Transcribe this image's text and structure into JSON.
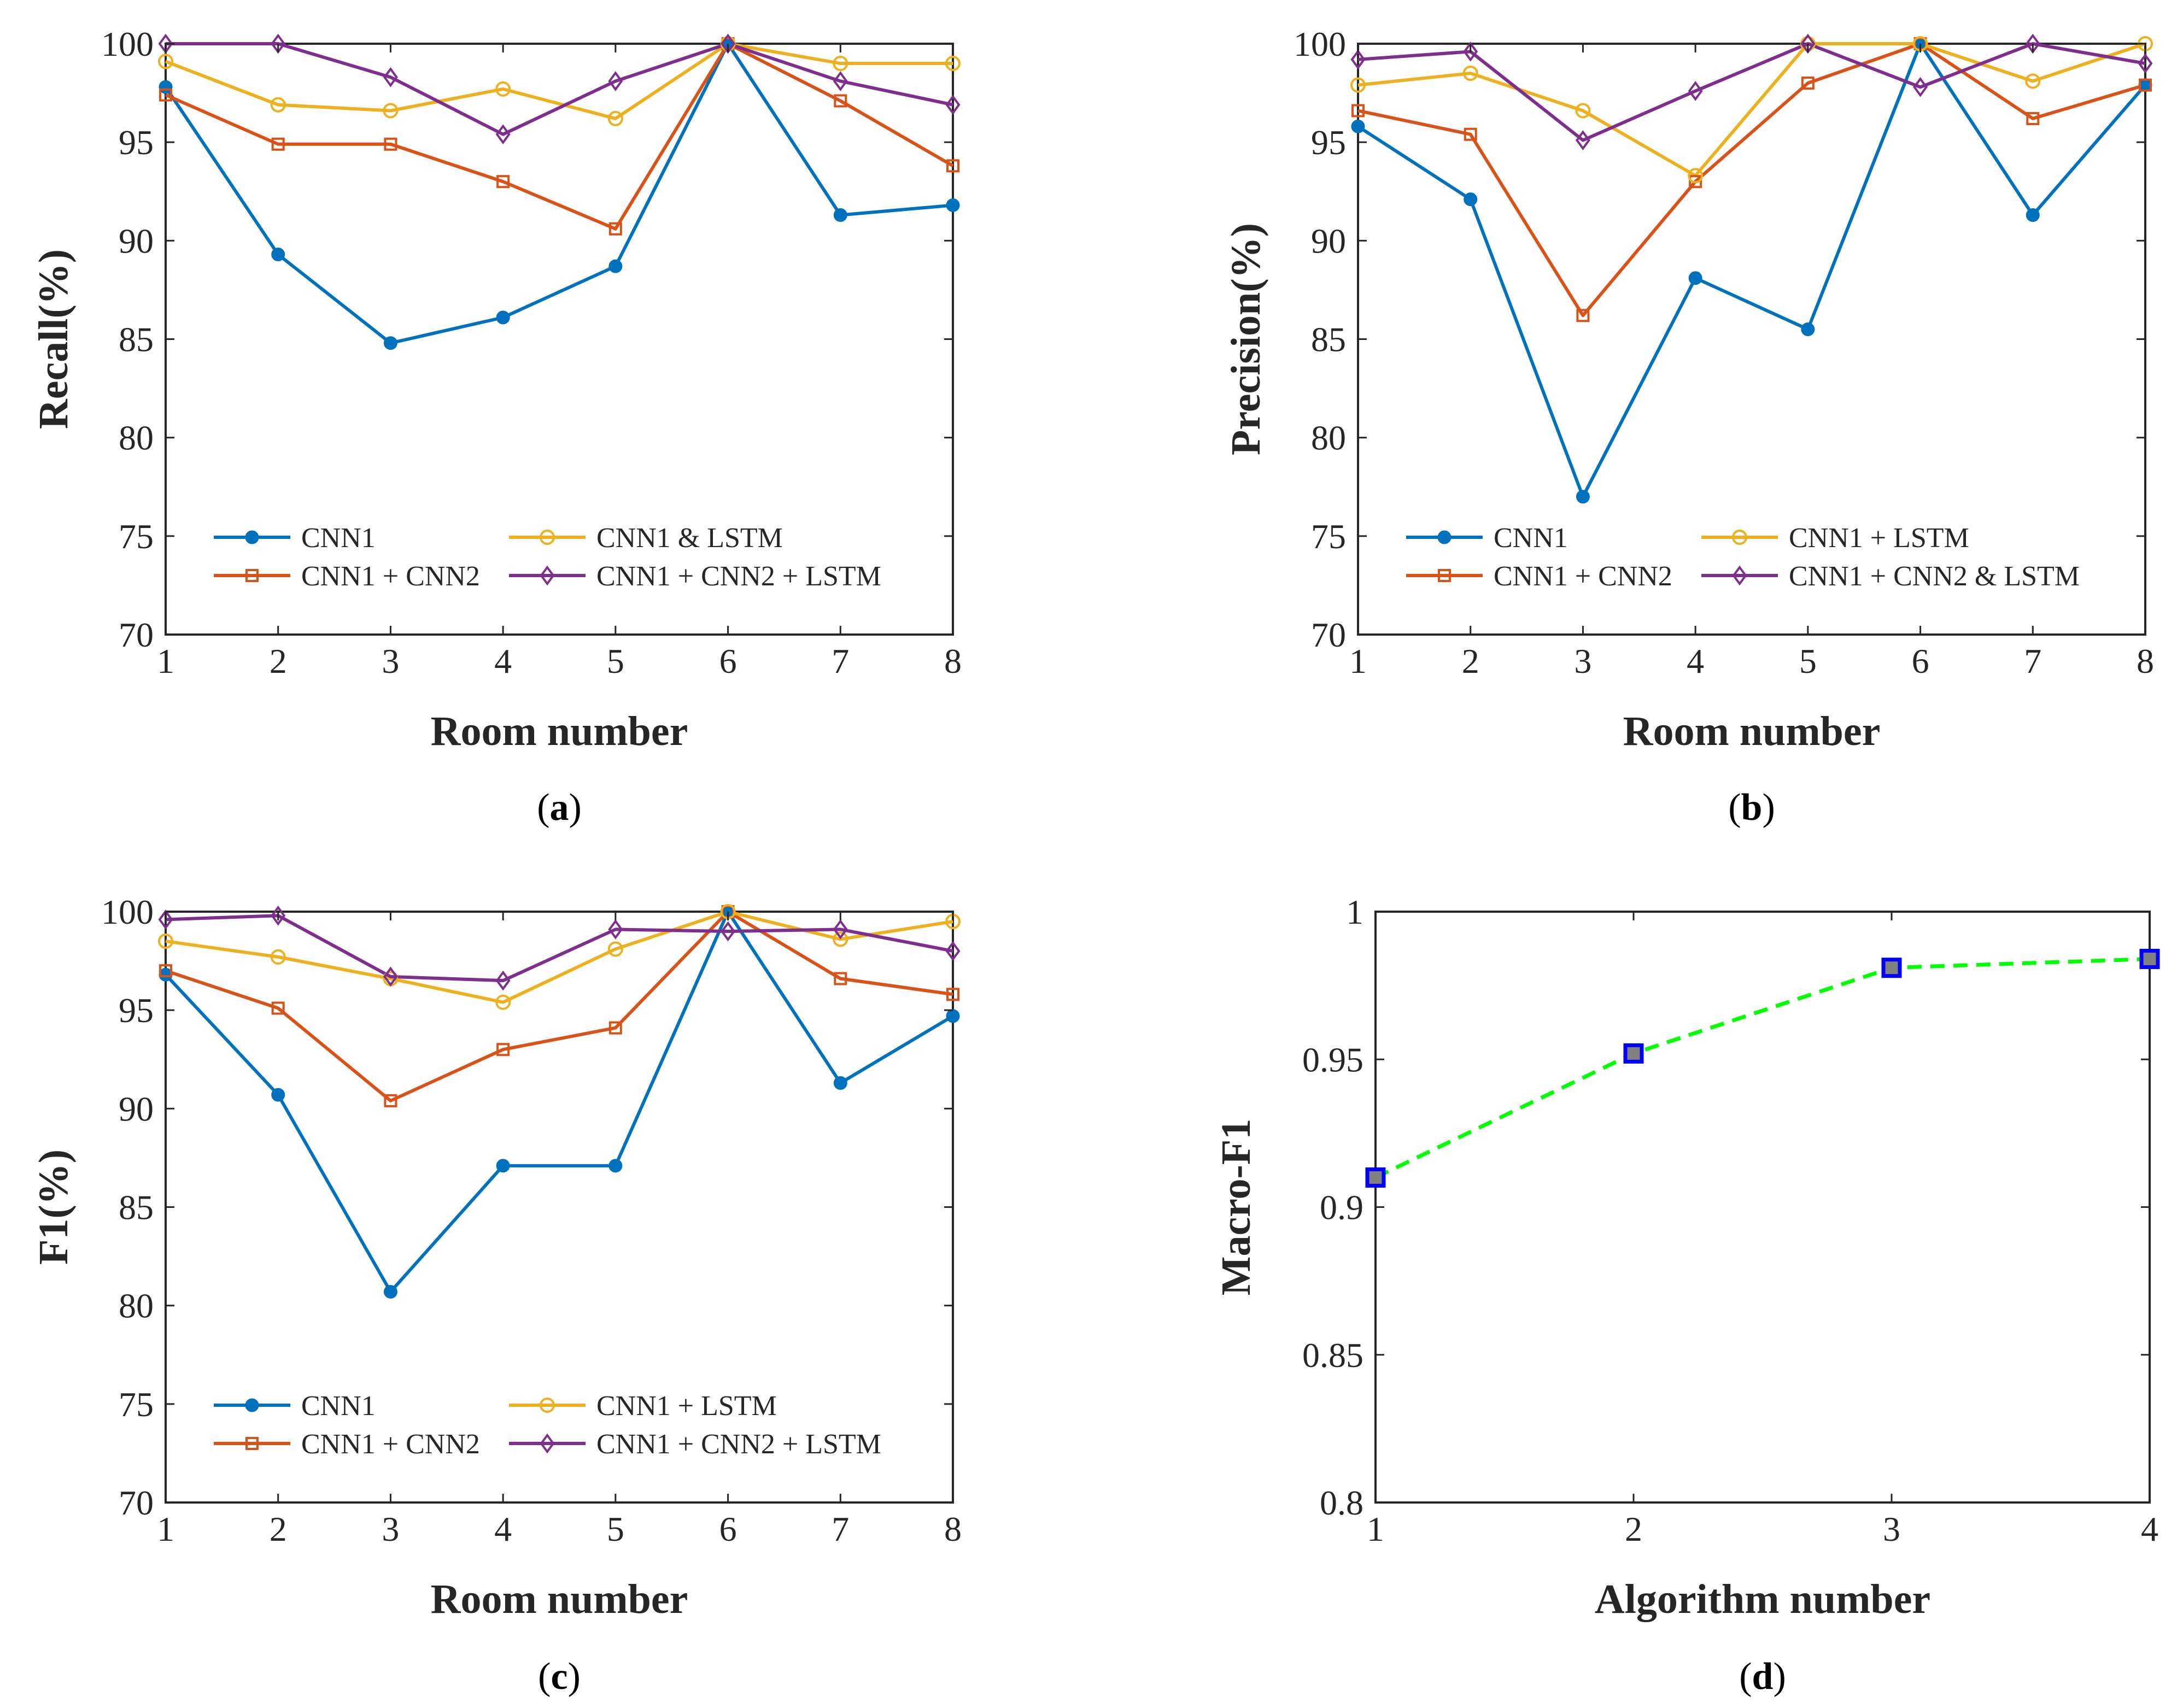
{
  "figure": {
    "captions": [
      {
        "paren_open": "(",
        "letter": "a",
        "paren_close": ")"
      },
      {
        "paren_open": "(",
        "letter": "b",
        "paren_close": ")"
      },
      {
        "paren_open": "(",
        "letter": "c",
        "paren_close": ")"
      },
      {
        "paren_open": "(",
        "letter": "d",
        "paren_close": ")"
      }
    ]
  },
  "colors": {
    "blue": "#0072BD",
    "orange": "#D95319",
    "yellow": "#EDB120",
    "purple": "#7E2F8E",
    "green": "#00FF00",
    "marker_blue": "#0000FF",
    "marker_fill": "#808080",
    "axis": "#262626"
  },
  "chart_data": [
    {
      "id": "a",
      "type": "line",
      "title": "",
      "xlabel": "Room number",
      "ylabel": "Recall(%)",
      "x": [
        1,
        2,
        3,
        4,
        5,
        6,
        7,
        8
      ],
      "xlim": [
        1,
        8
      ],
      "ylim": [
        70,
        100
      ],
      "xticks": [
        "1",
        "2",
        "3",
        "4",
        "5",
        "6",
        "7",
        "8"
      ],
      "yticks": [
        "70",
        "75",
        "80",
        "85",
        "90",
        "95",
        "100"
      ],
      "grid": false,
      "legend_position": "bottom",
      "series": [
        {
          "name": "CNN1",
          "color": "#0072BD",
          "marker": "dot",
          "values": [
            97.8,
            89.3,
            84.8,
            86.1,
            88.7,
            100,
            91.3,
            91.8
          ]
        },
        {
          "name": "CNN1 + CNN2",
          "color": "#D95319",
          "marker": "square",
          "values": [
            97.4,
            94.9,
            94.9,
            93.0,
            90.6,
            100,
            97.1,
            93.8
          ]
        },
        {
          "name": "CNN1 & LSTM",
          "color": "#EDB120",
          "marker": "circle",
          "values": [
            99.1,
            96.9,
            96.6,
            97.7,
            96.2,
            100,
            99.0,
            99.0
          ]
        },
        {
          "name": "CNN1 + CNN2 + LSTM",
          "color": "#7E2F8E",
          "marker": "diamond",
          "values": [
            100,
            100,
            98.3,
            95.4,
            98.1,
            100,
            98.1,
            96.9
          ]
        }
      ]
    },
    {
      "id": "b",
      "type": "line",
      "title": "",
      "xlabel": "Room number",
      "ylabel": "Precision(%)",
      "x": [
        1,
        2,
        3,
        4,
        5,
        6,
        7,
        8
      ],
      "xlim": [
        1,
        8
      ],
      "ylim": [
        70,
        100
      ],
      "xticks": [
        "1",
        "2",
        "3",
        "4",
        "5",
        "6",
        "7",
        "8"
      ],
      "yticks": [
        "70",
        "75",
        "80",
        "85",
        "90",
        "95",
        "100"
      ],
      "grid": false,
      "legend_position": "bottom",
      "series": [
        {
          "name": "CNN1",
          "color": "#0072BD",
          "marker": "dot",
          "values": [
            95.8,
            92.1,
            77.0,
            88.1,
            85.5,
            100,
            91.3,
            97.9
          ]
        },
        {
          "name": "CNN1 + CNN2",
          "color": "#D95319",
          "marker": "square",
          "values": [
            96.6,
            95.4,
            86.2,
            93.0,
            98.0,
            100,
            96.2,
            97.9
          ]
        },
        {
          "name": "CNN1 + LSTM",
          "color": "#EDB120",
          "marker": "circle",
          "values": [
            97.9,
            98.5,
            96.6,
            93.3,
            100,
            100,
            98.1,
            100
          ]
        },
        {
          "name": "CNN1 + CNN2 & LSTM",
          "color": "#7E2F8E",
          "marker": "diamond",
          "values": [
            99.2,
            99.6,
            95.1,
            97.6,
            100,
            97.8,
            100,
            99.0
          ]
        }
      ]
    },
    {
      "id": "c",
      "type": "line",
      "title": "",
      "xlabel": "Room number",
      "ylabel": "F1(%)",
      "x": [
        1,
        2,
        3,
        4,
        5,
        6,
        7,
        8
      ],
      "xlim": [
        1,
        8
      ],
      "ylim": [
        70,
        100
      ],
      "xticks": [
        "1",
        "2",
        "3",
        "4",
        "5",
        "6",
        "7",
        "8"
      ],
      "yticks": [
        "70",
        "75",
        "80",
        "85",
        "90",
        "95",
        "100"
      ],
      "grid": false,
      "legend_position": "bottom",
      "series": [
        {
          "name": "CNN1",
          "color": "#0072BD",
          "marker": "dot",
          "values": [
            96.8,
            90.7,
            80.7,
            87.1,
            87.1,
            100,
            91.3,
            94.7
          ]
        },
        {
          "name": "CNN1 + CNN2",
          "color": "#D95319",
          "marker": "square",
          "values": [
            97.0,
            95.1,
            90.4,
            93.0,
            94.1,
            100,
            96.6,
            95.8
          ]
        },
        {
          "name": "CNN1 + LSTM",
          "color": "#EDB120",
          "marker": "circle",
          "values": [
            98.5,
            97.7,
            96.6,
            95.4,
            98.1,
            100,
            98.6,
            99.5
          ]
        },
        {
          "name": "CNN1 + CNN2 + LSTM",
          "color": "#7E2F8E",
          "marker": "diamond",
          "values": [
            99.6,
            99.8,
            96.7,
            96.5,
            99.1,
            99.0,
            99.1,
            98.0
          ]
        }
      ]
    },
    {
      "id": "d",
      "type": "line",
      "title": "",
      "xlabel": "Algorithm number",
      "ylabel": "Macro-F1",
      "x": [
        1,
        2,
        3,
        4
      ],
      "xlim": [
        1,
        4
      ],
      "ylim": [
        0.8,
        1.0
      ],
      "xticks": [
        "1",
        "2",
        "3",
        "4"
      ],
      "yticks": [
        "0.8",
        "0.85",
        "0.9",
        "0.95",
        "1"
      ],
      "grid": false,
      "legend_position": "none",
      "series": [
        {
          "name": "Macro-F1",
          "color": "#00FF00",
          "marker": "square",
          "line_style": "dashed",
          "values": [
            0.91,
            0.952,
            0.981,
            0.984
          ]
        }
      ]
    }
  ]
}
